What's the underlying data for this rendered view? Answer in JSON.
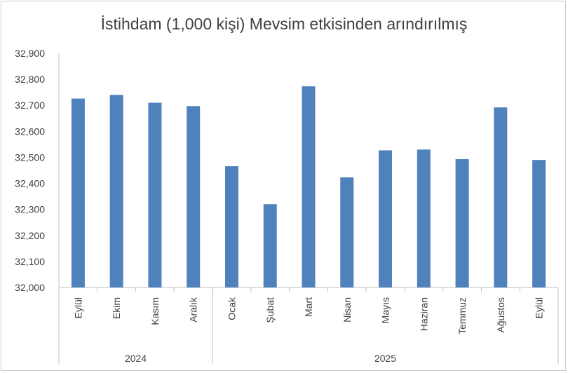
{
  "chart_data": {
    "type": "bar",
    "title": "İstihdam (1,000 kişi) Mevsim etkisinden arındırılmış",
    "categories": [
      "Eylül",
      "Ekim",
      "Kasım",
      "Aralık",
      "Ocak",
      "Şubat",
      "Mart",
      "Nisan",
      "Mayıs",
      "Haziran",
      "Temmuz",
      "Ağustos",
      "Eylül"
    ],
    "groups": [
      {
        "label": "2024",
        "count": 4
      },
      {
        "label": "2025",
        "count": 9
      }
    ],
    "values": [
      32726,
      32740,
      32710,
      32697,
      32466,
      32320,
      32773,
      32423,
      32527,
      32530,
      32493,
      32692,
      32490
    ],
    "ylim": [
      32000,
      32900
    ],
    "yticks": [
      "32,000",
      "32,100",
      "32,200",
      "32,300",
      "32,400",
      "32,500",
      "32,600",
      "32,700",
      "32,800",
      "32,900"
    ],
    "bar_color": "#4f81bd",
    "grid": false
  }
}
